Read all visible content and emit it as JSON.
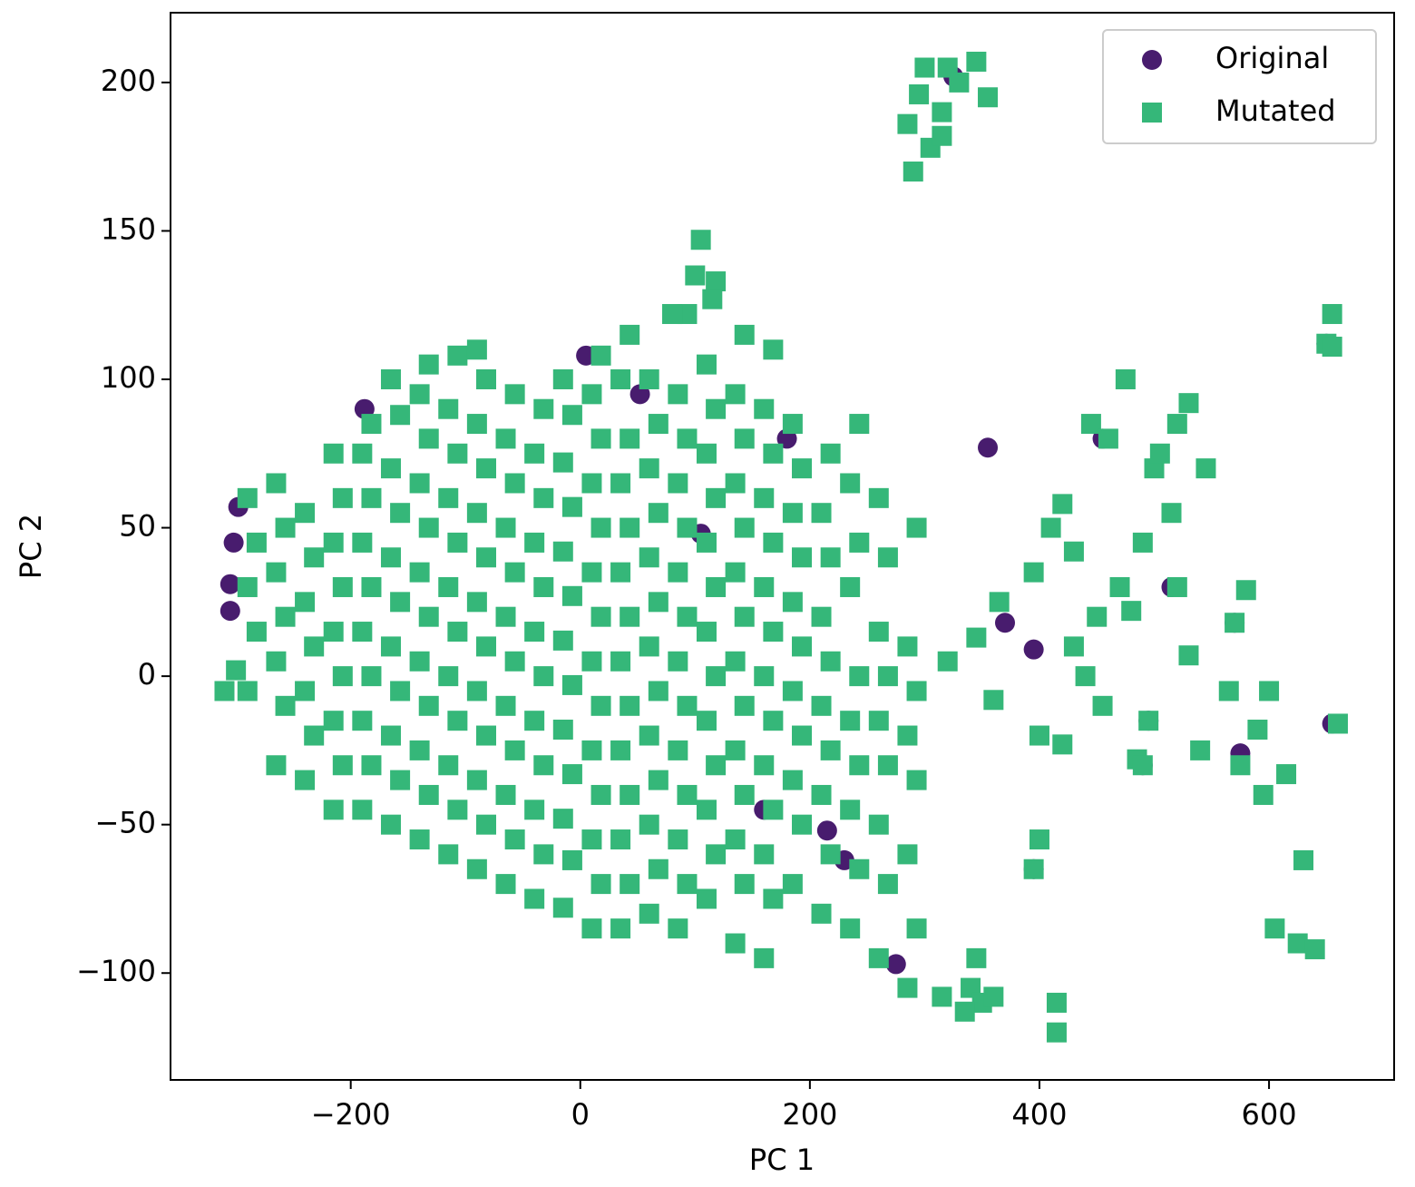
{
  "chart_data": {
    "type": "scatter",
    "xlabel": "PC 1",
    "ylabel": "PC 2",
    "xlim": [
      -357,
      709
    ],
    "ylim": [
      -136,
      223.5
    ],
    "xticks": [
      {
        "value": -200,
        "label": "−200"
      },
      0,
      200,
      400,
      600
    ],
    "yticks": [
      {
        "value": -100,
        "label": "−100"
      },
      {
        "value": -50,
        "label": "−50"
      },
      0,
      50,
      100,
      150,
      200
    ],
    "legend": "upper right",
    "series": [
      {
        "name": "Original",
        "color": "#481c6e",
        "marker": "circle",
        "x": [
          -298,
          -302,
          -305,
          -305,
          -188,
          5,
          52,
          325,
          355,
          370,
          395,
          395,
          455,
          515,
          570,
          495,
          490,
          575,
          655,
          650,
          215,
          230,
          105,
          160,
          275,
          180
        ],
        "y": [
          57,
          45,
          31,
          22,
          90,
          108,
          95,
          202,
          77,
          18,
          9,
          -65,
          80,
          30,
          18,
          -15,
          -30,
          -26,
          -16,
          112,
          -52,
          -62,
          48,
          -45,
          -97,
          80
        ]
      },
      {
        "name": "Mutated",
        "color": "#35b779",
        "marker": "square",
        "x": [
          -310,
          -300,
          -290,
          -282,
          -290,
          -282,
          -290,
          -265,
          -257,
          -265,
          -257,
          -265,
          -257,
          -265,
          -240,
          -232,
          -240,
          -232,
          -240,
          -232,
          -240,
          -215,
          -207,
          -215,
          -207,
          -215,
          -207,
          -215,
          -207,
          -215,
          -190,
          -182,
          -190,
          -182,
          -190,
          -182,
          -190,
          -182,
          -190,
          -182,
          -165,
          -157,
          -165,
          -157,
          -165,
          -157,
          -165,
          -157,
          -165,
          -157,
          -165,
          -140,
          -132,
          -140,
          -132,
          -140,
          -132,
          -140,
          -132,
          -140,
          -132,
          -140,
          -132,
          -115,
          -107,
          -115,
          -107,
          -115,
          -107,
          -115,
          -107,
          -115,
          -107,
          -115,
          -107,
          -90,
          -82,
          -90,
          -82,
          -90,
          -82,
          -90,
          -82,
          -90,
          -82,
          -90,
          -82,
          -90,
          -65,
          -57,
          -65,
          -57,
          -65,
          -57,
          -65,
          -57,
          -65,
          -57,
          -65,
          -57,
          -40,
          -32,
          -40,
          -32,
          -40,
          -32,
          -40,
          -32,
          -40,
          -32,
          -40,
          -32,
          -15,
          -7,
          -15,
          -7,
          -15,
          -7,
          -15,
          -7,
          -15,
          -7,
          -15,
          -7,
          -15,
          10,
          18,
          10,
          18,
          10,
          18,
          10,
          18,
          10,
          18,
          10,
          18,
          10,
          18,
          35,
          43,
          35,
          43,
          35,
          43,
          35,
          43,
          35,
          43,
          35,
          43,
          35,
          43,
          60,
          68,
          60,
          68,
          60,
          68,
          60,
          68,
          60,
          68,
          60,
          68,
          60,
          85,
          93,
          85,
          93,
          85,
          93,
          85,
          93,
          85,
          93,
          85,
          93,
          85,
          93,
          110,
          118,
          110,
          118,
          110,
          118,
          110,
          118,
          110,
          118,
          110,
          118,
          110,
          118,
          135,
          143,
          135,
          143,
          135,
          143,
          135,
          143,
          135,
          143,
          135,
          143,
          135,
          143,
          160,
          168,
          160,
          168,
          160,
          168,
          160,
          168,
          160,
          168,
          160,
          168,
          160,
          168,
          185,
          193,
          185,
          193,
          185,
          193,
          185,
          193,
          185,
          193,
          185,
          210,
          218,
          210,
          218,
          210,
          218,
          210,
          218,
          210,
          218,
          235,
          243,
          235,
          243,
          235,
          243,
          235,
          243,
          235,
          243,
          260,
          268,
          260,
          268,
          260,
          268,
          260,
          268,
          260,
          285,
          293,
          285,
          293,
          285,
          293,
          285,
          293,
          285,
          290,
          295,
          300,
          305,
          315,
          320,
          330,
          345,
          355,
          315,
          100,
          105,
          115,
          80,
          345,
          340,
          350,
          315,
          335,
          360,
          320,
          345,
          360,
          365,
          395,
          400,
          400,
          395,
          410,
          415,
          415,
          420,
          420,
          430,
          430,
          440,
          445,
          450,
          455,
          460,
          470,
          475,
          480,
          490,
          495,
          500,
          505,
          515,
          520,
          530,
          520,
          530,
          540,
          545,
          565,
          570,
          575,
          580,
          590,
          595,
          600,
          605,
          615,
          625,
          630,
          640,
          650,
          655,
          655,
          660,
          485,
          490
        ],
        "y": [
          -5,
          2,
          -5,
          15,
          30,
          45,
          60,
          -30,
          -10,
          5,
          20,
          35,
          50,
          65,
          -35,
          -20,
          -5,
          10,
          25,
          40,
          55,
          -45,
          -30,
          -15,
          0,
          15,
          30,
          45,
          60,
          75,
          -45,
          -30,
          -15,
          0,
          15,
          30,
          45,
          60,
          75,
          85,
          -50,
          -35,
          -20,
          -5,
          10,
          25,
          40,
          55,
          70,
          88,
          100,
          -55,
          -40,
          -25,
          -10,
          5,
          20,
          35,
          50,
          65,
          80,
          95,
          105,
          -60,
          -45,
          -30,
          -15,
          0,
          15,
          30,
          45,
          60,
          75,
          90,
          108,
          -65,
          -50,
          -35,
          -20,
          -5,
          10,
          25,
          40,
          55,
          70,
          85,
          100,
          110,
          -70,
          -55,
          -40,
          -25,
          -10,
          5,
          20,
          35,
          50,
          65,
          80,
          95,
          -75,
          -60,
          -45,
          -30,
          -15,
          0,
          15,
          30,
          45,
          60,
          75,
          90,
          -78,
          -62,
          -48,
          -33,
          -18,
          -3,
          12,
          27,
          42,
          57,
          72,
          88,
          100,
          -85,
          -70,
          -55,
          -40,
          -25,
          -10,
          5,
          20,
          35,
          50,
          65,
          80,
          95,
          108,
          -85,
          -70,
          -55,
          -40,
          -25,
          -10,
          5,
          20,
          35,
          50,
          65,
          80,
          100,
          115,
          -80,
          -65,
          -50,
          -35,
          -20,
          -5,
          10,
          25,
          40,
          55,
          70,
          85,
          100,
          -85,
          -70,
          -55,
          -40,
          -25,
          -10,
          5,
          20,
          35,
          50,
          65,
          80,
          95,
          122,
          -75,
          -60,
          -45,
          -30,
          -15,
          0,
          15,
          30,
          45,
          60,
          75,
          90,
          105,
          133,
          -90,
          -70,
          -55,
          -40,
          -25,
          -10,
          5,
          20,
          35,
          50,
          65,
          80,
          95,
          115,
          -95,
          -75,
          -60,
          -45,
          -30,
          -15,
          0,
          15,
          30,
          45,
          60,
          75,
          90,
          110,
          -70,
          -50,
          -35,
          -20,
          -5,
          10,
          25,
          40,
          55,
          70,
          85,
          -80,
          -60,
          -40,
          -25,
          -10,
          5,
          20,
          40,
          55,
          75,
          -85,
          -65,
          -45,
          -30,
          -15,
          0,
          30,
          45,
          65,
          85,
          -95,
          -70,
          -50,
          -30,
          -15,
          0,
          15,
          40,
          60,
          -105,
          -85,
          -60,
          -35,
          -20,
          -5,
          10,
          50,
          186,
          170,
          196,
          205,
          178,
          190,
          205,
          200,
          207,
          195,
          182,
          135,
          147,
          127,
          122,
          -95,
          -105,
          -110,
          -108,
          -113,
          -108,
          5,
          13,
          -8,
          25,
          35,
          -20,
          -55,
          -65,
          50,
          -110,
          -120,
          -23,
          58,
          42,
          10,
          0,
          85,
          20,
          -10,
          80,
          30,
          100,
          22,
          45,
          -15,
          70,
          75,
          55,
          85,
          92,
          30,
          7,
          -25,
          70,
          -5,
          18,
          -30,
          29,
          -18,
          -40,
          -5,
          -85,
          -33,
          -90,
          -62,
          -92,
          112,
          122,
          111,
          -16,
          -28,
          -30
        ]
      }
    ]
  }
}
